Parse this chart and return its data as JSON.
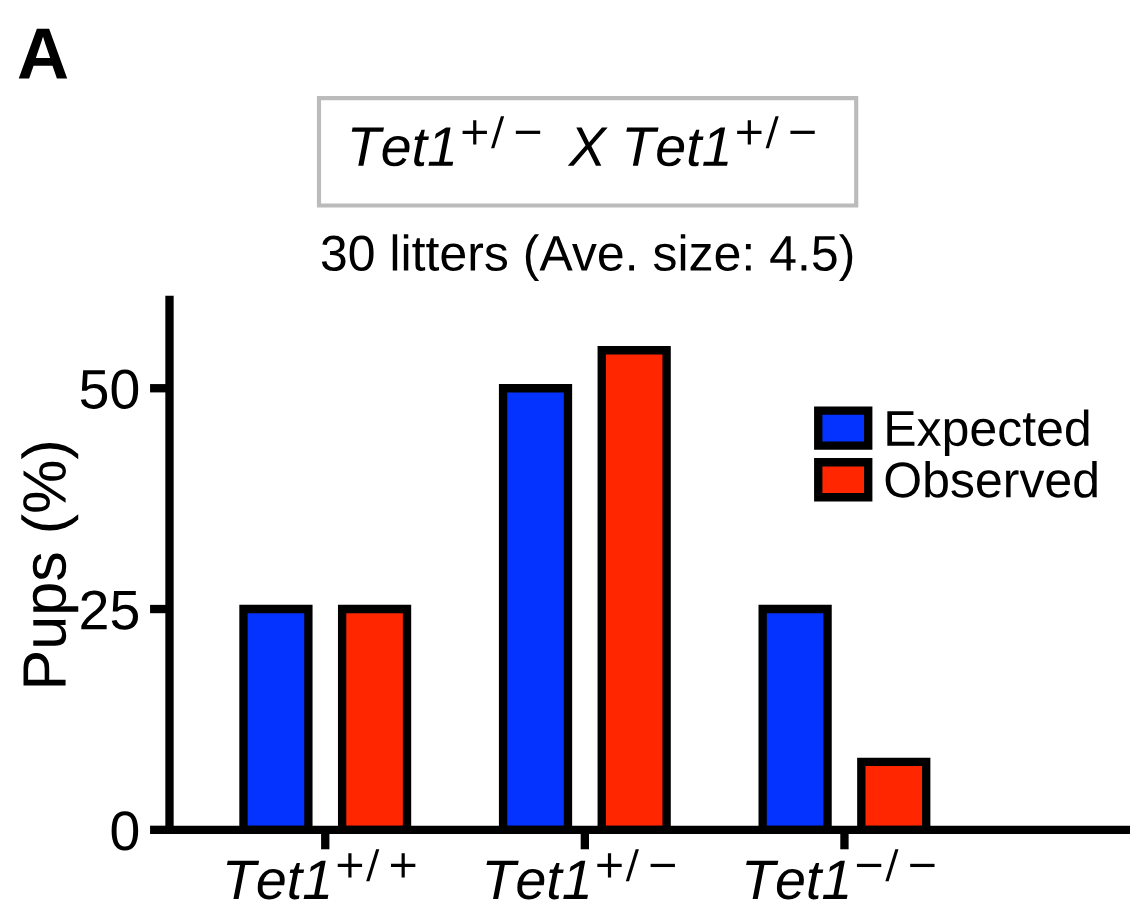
{
  "chart_data": {
    "type": "bar",
    "title": "Tet1$^{+/−}$ X Tet1$^{+/−}$",
    "subtitle": "30 litters (Ave. size: 4.5)",
    "ylabel": "Pups (%)",
    "categories": [
      "Tet1$^{+/+}$",
      "Tet1$^{+/−}$",
      "Tet1$^{−/−}$"
    ],
    "series": [
      {
        "name": "Expected",
        "color": "#0433ff",
        "values": [
          25,
          50,
          25
        ]
      },
      {
        "name": "Observed",
        "color": "#ff2600",
        "values": [
          25,
          54.3,
          7.7
        ]
      }
    ],
    "ylim": [
      0,
      60
    ],
    "yticks": [
      0,
      25,
      50
    ],
    "grid": false,
    "legend": "top right",
    "annotations": [
      "A"
    ]
  }
}
